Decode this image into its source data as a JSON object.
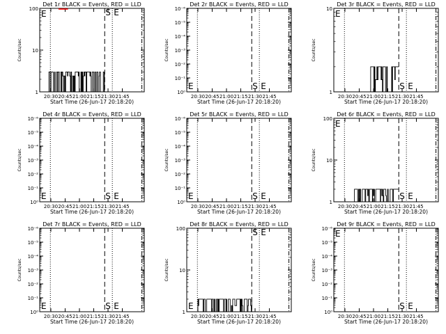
{
  "start_time_label": "Start Time (26-Jun-17 20:18:20)",
  "ylabel": "Counts/sec",
  "x_tick_labels": [
    "20:30",
    "20:45",
    "21:00",
    "21:15",
    "21:30",
    "21:45"
  ],
  "x_tick_minutes": [
    30,
    45,
    60,
    75,
    90,
    105
  ],
  "x_range_minutes": [
    18.33,
    128
  ],
  "markers": {
    "dotted_minutes": [
      29.5,
      94.5
    ],
    "dashed_S_minutes": [
      86.5
    ],
    "dashdot_minutes": [
      125.5
    ],
    "S_label": "S",
    "E_label": "E"
  },
  "colors": {
    "events": "#000000",
    "lld": "#ff0000"
  },
  "chart_data": [
    {
      "type": "line",
      "title": "Det 1r BLACK = Events, RED = LLD",
      "scale": "log",
      "ylim": [
        1,
        100
      ],
      "y_tick_labels": [
        "1",
        "10",
        "100"
      ],
      "events": {
        "start": 28,
        "end": 86.5,
        "low": 1,
        "high": 3,
        "pattern": "noisy"
      },
      "lld": {
        "start": 38,
        "end": 48,
        "value": 100
      }
    },
    {
      "type": "line",
      "title": "Det 2r BLACK = Events, RED = LLD",
      "scale": "log",
      "ylim": [
        1,
        1000000
      ],
      "y_tick_labels": [
        "10⁰",
        "10⁻¹",
        "10⁻²",
        "10⁻³",
        "10⁻⁴",
        "10⁻⁵",
        "10⁻⁶"
      ],
      "events": null,
      "lld": null
    },
    {
      "type": "line",
      "title": "Det 3r BLACK = Events, RED = LLD",
      "scale": "log",
      "ylim": [
        1,
        10
      ],
      "y_tick_labels": [
        "1",
        "10"
      ],
      "events": {
        "start": 57,
        "end": 86.5,
        "low": 1,
        "high": 2,
        "pattern": "noisy"
      },
      "lld": null
    },
    {
      "type": "line",
      "title": "Det 4r BLACK = Events, RED = LLD",
      "scale": "log",
      "ylim": [
        1,
        1000000
      ],
      "y_tick_labels": [
        "10⁰",
        "10⁻¹",
        "10⁻²",
        "10⁻³",
        "10⁻⁴",
        "10⁻⁵",
        "10⁻⁶"
      ],
      "events": null,
      "lld": null
    },
    {
      "type": "line",
      "title": "Det 5r BLACK = Events, RED = LLD",
      "scale": "log",
      "ylim": [
        1,
        1000000
      ],
      "y_tick_labels": [
        "10⁰",
        "10⁻¹",
        "10⁻²",
        "10⁻³",
        "10⁻⁴",
        "10⁻⁵",
        "10⁻⁶"
      ],
      "events": null,
      "lld": null
    },
    {
      "type": "line",
      "title": "Det 6r BLACK = Events, RED = LLD",
      "scale": "log",
      "ylim": [
        1,
        100
      ],
      "y_tick_labels": [
        "1",
        "10",
        "100"
      ],
      "events": {
        "start": 40,
        "end": 86.5,
        "low": 1,
        "high": 2,
        "pattern": "noisy"
      },
      "lld": null
    },
    {
      "type": "line",
      "title": "Det 7r BLACK = Events, RED = LLD",
      "scale": "log",
      "ylim": [
        1,
        1000000
      ],
      "y_tick_labels": [
        "10⁰",
        "10⁻¹",
        "10⁻²",
        "10⁻³",
        "10⁻⁴",
        "10⁻⁵",
        "10⁻⁶"
      ],
      "events": null,
      "lld": null
    },
    {
      "type": "line",
      "title": "Det 8r BLACK = Events, RED = LLD",
      "scale": "log",
      "ylim": [
        1,
        100
      ],
      "y_tick_labels": [
        "1",
        "10",
        "100"
      ],
      "events": {
        "start": 30,
        "end": 86.5,
        "low": 1,
        "high": 2,
        "pattern": "noisy"
      },
      "lld": null
    },
    {
      "type": "line",
      "title": "Det 9r BLACK = Events, RED = LLD",
      "scale": "log",
      "ylim": [
        1,
        1000000
      ],
      "y_tick_labels": [
        "10⁰",
        "10⁻¹",
        "10⁻²",
        "10⁻³",
        "10⁻⁴",
        "10⁻⁵",
        "10⁻⁶"
      ],
      "events": null,
      "lld": null
    }
  ]
}
